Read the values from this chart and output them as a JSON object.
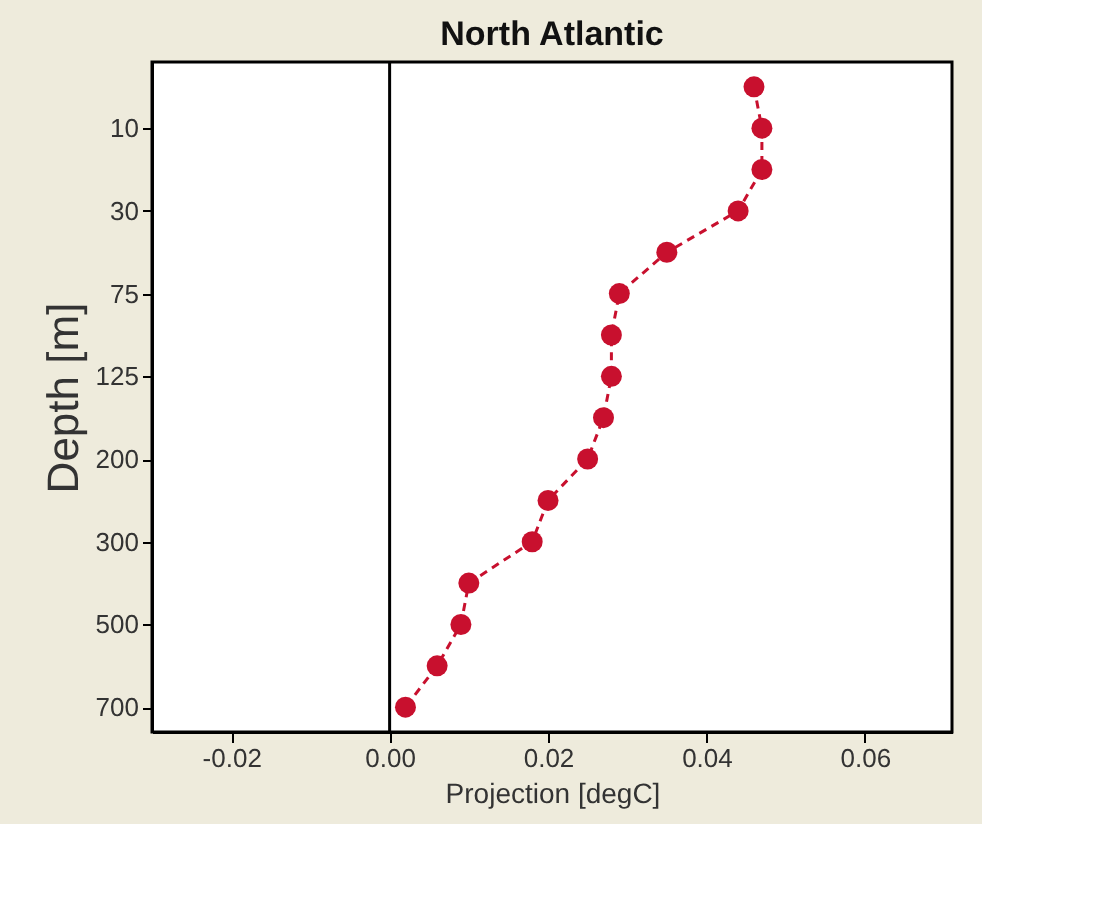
{
  "chart_data": {
    "type": "line",
    "title": "North Atlantic",
    "xlabel": "Projection [degC]",
    "ylabel": "Depth [m]",
    "orientation": "horizontal",
    "categories": [
      null,
      "10",
      null,
      "30",
      null,
      "75",
      null,
      "125",
      null,
      "200",
      null,
      "300",
      null,
      "500",
      null,
      "700"
    ],
    "series": [
      {
        "color": "#c8102e",
        "values": [
          0.046,
          0.047,
          0.047,
          0.044,
          0.035,
          0.029,
          0.028,
          0.028,
          0.027,
          0.025,
          0.02,
          0.018,
          0.01,
          0.009,
          0.006,
          0.002
        ]
      }
    ],
    "xlim": [
      -0.03,
      0.071
    ],
    "xticks": [
      {
        "value": -0.02,
        "label": "-0.02"
      },
      {
        "value": 0,
        "label": "0.00"
      },
      {
        "value": 0.02,
        "label": "0.02"
      },
      {
        "value": 0.04,
        "label": "0.04"
      },
      {
        "value": 0.06,
        "label": "0.06"
      }
    ],
    "marker": "circle",
    "line_style": "dashed",
    "grid": false,
    "ref_lines": [
      {
        "axis": "x",
        "value": 0,
        "color": "#000000"
      }
    ]
  }
}
